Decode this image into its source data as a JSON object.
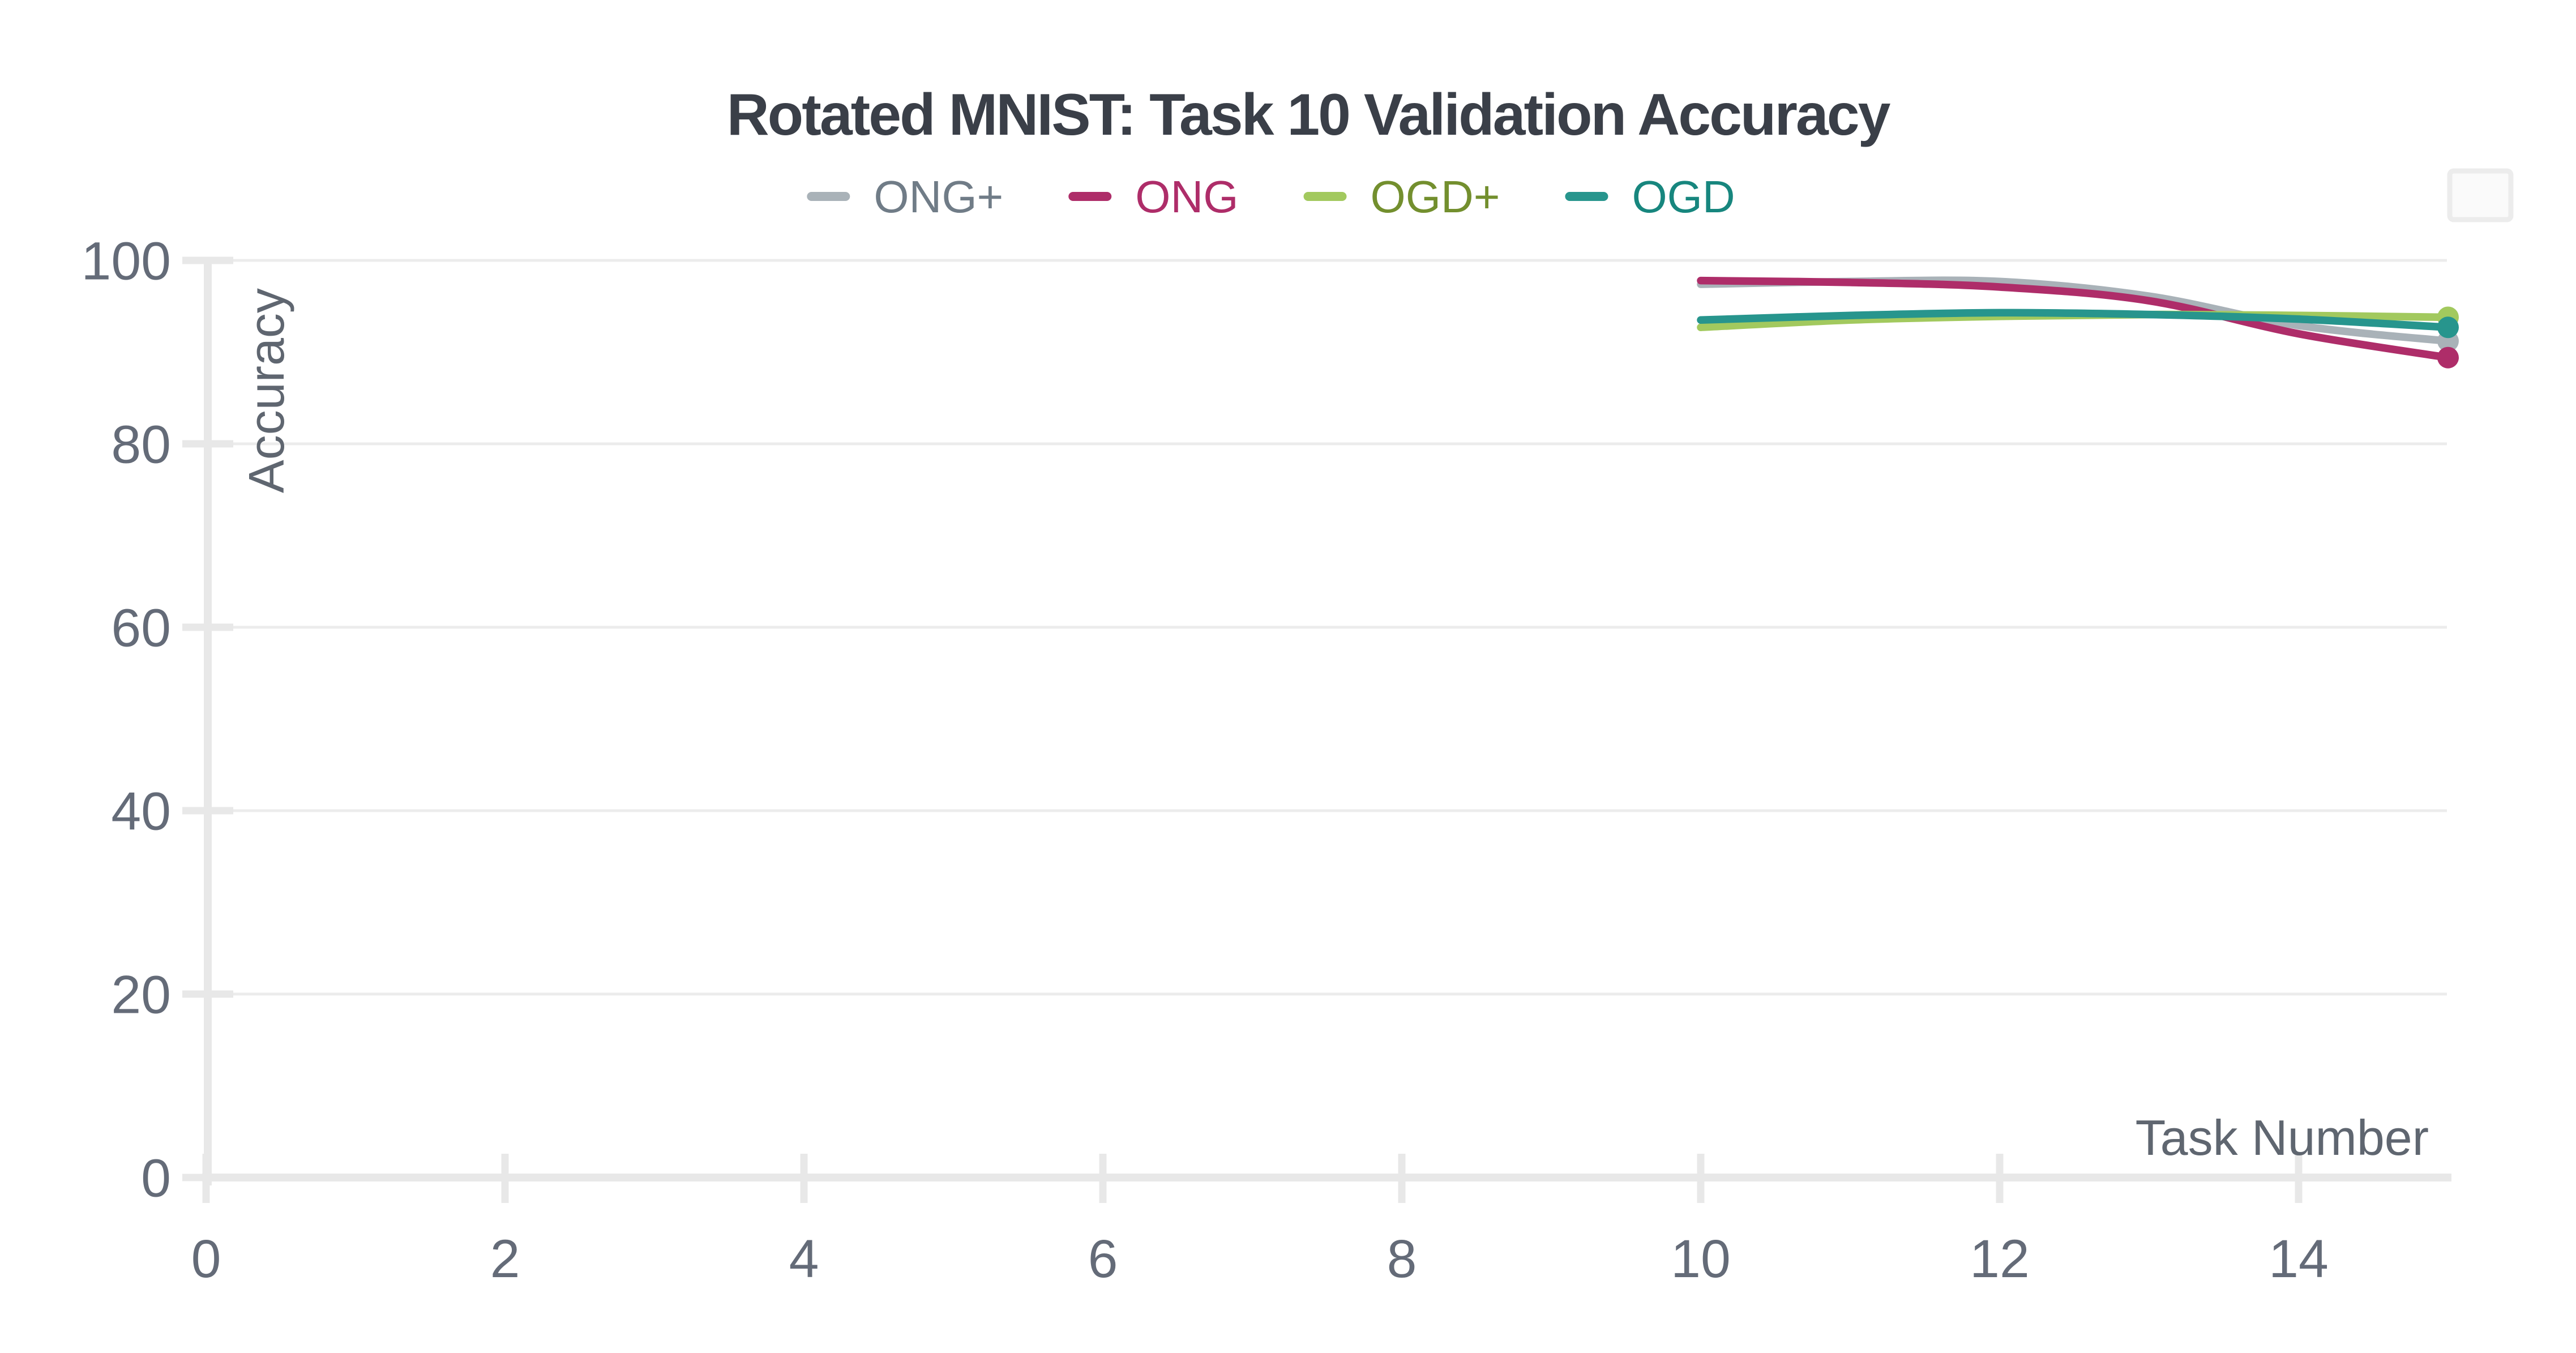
{
  "page": {
    "background": "#ffffff"
  },
  "toolbar": {
    "button_icon": "blank-square-icon"
  },
  "chart_data": {
    "type": "line",
    "title": "Rotated MNIST: Task 10 Validation Accuracy",
    "xlabel": "Task Number",
    "ylabel": "Accuracy",
    "x": [
      10,
      11,
      12,
      13,
      14,
      15
    ],
    "series": [
      {
        "name": "ONG+",
        "color": "#a9b2b8",
        "label_color": "#707c87",
        "values": [
          97.4,
          97.7,
          97.7,
          96.1,
          92.9,
          91.2
        ]
      },
      {
        "name": "ONG",
        "color": "#ae2d69",
        "label_color": "#ae2d69",
        "values": [
          97.8,
          97.6,
          97.1,
          95.6,
          92.0,
          89.4
        ]
      },
      {
        "name": "OGD+",
        "color": "#a2c95e",
        "label_color": "#738f2e",
        "values": [
          92.7,
          93.5,
          93.9,
          94.1,
          94.0,
          93.8
        ]
      },
      {
        "name": "OGD",
        "color": "#27958d",
        "label_color": "#17867e",
        "values": [
          93.5,
          94.0,
          94.3,
          94.1,
          93.6,
          92.7
        ]
      }
    ],
    "xticks": [
      0,
      2,
      4,
      6,
      8,
      10,
      12,
      14
    ],
    "yticks": [
      0,
      20,
      40,
      60,
      80,
      100
    ],
    "xlim": [
      0,
      15.1
    ],
    "ylim": [
      0,
      100
    ],
    "grid": "horizontal-only",
    "legend_position": "top-center",
    "marker": "end-dot",
    "colors": {
      "title_text": "#3a3f48",
      "tick_label": "#646b78",
      "axis_label": "#5f6670",
      "gridline": "#ececec",
      "axis_line": "#e8e8e8",
      "button_fill": "#fafafa",
      "button_border": "#ececec"
    }
  }
}
